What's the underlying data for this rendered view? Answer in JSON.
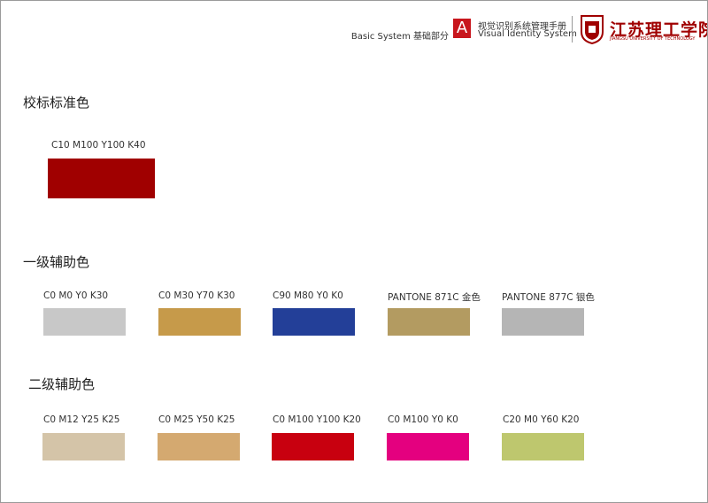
{
  "header": {
    "section": "Basic System 基础部分",
    "badge": "A",
    "manual_cn": "视觉识别系统管理手册",
    "manual_en": "Visual Identity System",
    "school_cn": "江苏理工学院",
    "school_en": "JIANGSU UNIVERSITY OF TECHNOLOGY"
  },
  "sections": [
    {
      "title": "校标标准色",
      "swatches": [
        {
          "label": "C10 M100 Y100 K40",
          "color": "#a00000"
        }
      ]
    },
    {
      "title": "一级辅助色",
      "swatches": [
        {
          "label": "C0 M0 Y0 K30",
          "color": "#c8c8c8"
        },
        {
          "label": "C0 M30 Y70 K30",
          "color": "#c69a4a"
        },
        {
          "label": "C90 M80 Y0 K0",
          "color": "#233f98"
        },
        {
          "label": "PANTONE 871C  金色",
          "color": "#b39b61"
        },
        {
          "label": "PANTONE 877C  银色",
          "color": "#b5b5b5"
        }
      ]
    },
    {
      "title": "二级辅助色",
      "swatches": [
        {
          "label": "C0 M12 Y25 K25",
          "color": "#d4c4a8"
        },
        {
          "label": "C0 M25 Y50 K25",
          "color": "#d4a970"
        },
        {
          "label": "C0 M100 Y100 K20",
          "color": "#c8000f"
        },
        {
          "label": "C0 M100 Y0 K0",
          "color": "#e4007f"
        },
        {
          "label": "C20 M0 Y60 K20",
          "color": "#bec76e"
        }
      ]
    }
  ]
}
